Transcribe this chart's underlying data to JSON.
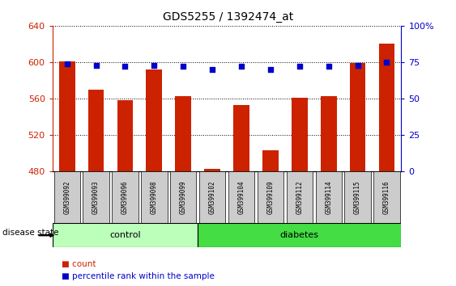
{
  "title": "GDS5255 / 1392474_at",
  "samples": [
    "GSM399092",
    "GSM399093",
    "GSM399096",
    "GSM399098",
    "GSM399099",
    "GSM399102",
    "GSM399104",
    "GSM399109",
    "GSM399112",
    "GSM399114",
    "GSM399115",
    "GSM399116"
  ],
  "counts": [
    601,
    570,
    558,
    592,
    563,
    483,
    553,
    503,
    561,
    563,
    599,
    620
  ],
  "percentiles": [
    74,
    73,
    72,
    73,
    72,
    70,
    72,
    70,
    72,
    72,
    73,
    75
  ],
  "ylim_left": [
    480,
    640
  ],
  "ylim_right": [
    0,
    100
  ],
  "yticks_left": [
    480,
    520,
    560,
    600,
    640
  ],
  "yticks_right": [
    0,
    25,
    50,
    75,
    100
  ],
  "ytick_right_labels": [
    "0",
    "25",
    "50",
    "75",
    "100%"
  ],
  "bar_color": "#cc2200",
  "dot_color": "#0000cc",
  "n_control": 5,
  "n_diabetes": 7,
  "control_color": "#bbffbb",
  "diabetes_color": "#44dd44",
  "tick_bg_color": "#cccccc",
  "disease_label": "disease state",
  "gridline_color": "#000000",
  "background_color": "#ffffff",
  "left_axis_color": "#cc2200",
  "right_axis_color": "#0000cc"
}
